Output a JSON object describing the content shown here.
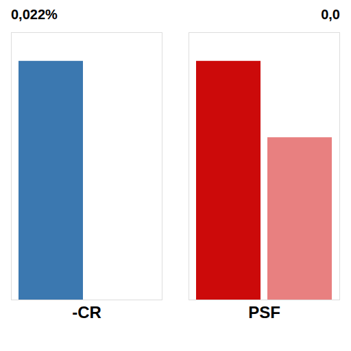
{
  "chart_data": {
    "type": "bar",
    "categories": [
      "-CR",
      "PSF"
    ],
    "series": [
      {
        "values": [
          1.0,
          1.0
        ],
        "colors": [
          "#3b78b0",
          "#cc0a0a"
        ]
      },
      {
        "values": [
          null,
          0.68
        ],
        "colors": [
          null,
          "#e88080"
        ]
      }
    ],
    "annotations": [
      "0,022%",
      "0,0"
    ],
    "ylim": [
      0,
      1.12
    ],
    "yticks": [],
    "grid": false,
    "tick_labels": "x"
  }
}
